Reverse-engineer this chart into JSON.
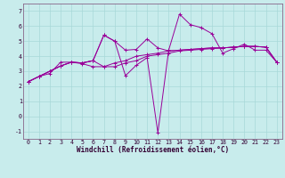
{
  "xlabel": "Windchill (Refroidissement éolien,°C)",
  "bg_color": "#c8ecec",
  "grid_color": "#a8d8d8",
  "line_color": "#990099",
  "spine_color": "#886688",
  "xlim": [
    -0.5,
    23.5
  ],
  "ylim": [
    -1.5,
    7.5
  ],
  "xticks": [
    0,
    1,
    2,
    3,
    4,
    5,
    6,
    7,
    8,
    9,
    10,
    11,
    12,
    13,
    14,
    15,
    16,
    17,
    18,
    19,
    20,
    21,
    22,
    23
  ],
  "yticks": [
    -1,
    0,
    1,
    2,
    3,
    4,
    5,
    6,
    7
  ],
  "series": [
    [
      2.3,
      2.65,
      2.85,
      3.6,
      3.6,
      3.5,
      3.3,
      3.3,
      3.55,
      3.7,
      4.0,
      4.1,
      4.2,
      4.35,
      4.4,
      4.45,
      4.5,
      4.55,
      4.55,
      4.6,
      4.65,
      4.65,
      4.6,
      3.6
    ],
    [
      2.3,
      2.65,
      3.0,
      3.35,
      3.6,
      3.55,
      3.7,
      5.4,
      5.0,
      2.7,
      3.4,
      3.9,
      -1.1,
      4.4,
      6.8,
      6.1,
      5.9,
      5.5,
      4.2,
      4.5,
      4.8,
      4.4,
      4.4,
      3.6
    ],
    [
      2.3,
      2.65,
      3.0,
      3.35,
      3.6,
      3.55,
      3.7,
      5.4,
      5.0,
      4.4,
      4.45,
      5.15,
      4.55,
      4.35,
      4.4,
      4.45,
      4.5,
      4.55,
      4.55,
      4.6,
      4.65,
      4.65,
      4.6,
      3.6
    ],
    [
      2.3,
      2.65,
      3.0,
      3.35,
      3.6,
      3.55,
      3.7,
      3.3,
      3.3,
      3.55,
      3.7,
      4.0,
      4.1,
      4.2,
      4.35,
      4.4,
      4.45,
      4.5,
      4.55,
      4.6,
      4.65,
      4.65,
      4.6,
      3.6
    ]
  ],
  "xlabel_fontsize": 5.5,
  "tick_fontsize": 4.8
}
